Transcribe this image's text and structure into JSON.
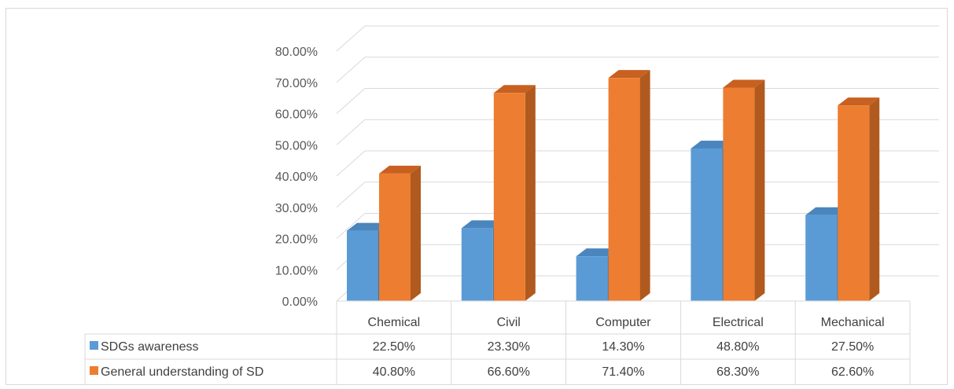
{
  "chart_data": {
    "type": "bar",
    "style": "3d-clustered-column",
    "categories": [
      "Chemical",
      "Civil",
      "Computer",
      "Electrical",
      "Mechanical"
    ],
    "series": [
      {
        "name": "SDGs awareness",
        "values": [
          22.5,
          23.3,
          14.3,
          48.8,
          27.5
        ],
        "labels": [
          "22.50%",
          "23.30%",
          "14.30%",
          "48.80%",
          "27.50%"
        ],
        "color": "#5b9bd5",
        "side_color": "#41719c",
        "top_color": "#4a86bd"
      },
      {
        "name": "General understanding of SD",
        "values": [
          40.8,
          66.6,
          71.4,
          68.3,
          62.6
        ],
        "labels": [
          "40.80%",
          "66.60%",
          "71.40%",
          "68.30%",
          "62.60%"
        ],
        "color": "#ed7d31",
        "side_color": "#b05a1f",
        "top_color": "#c8601f"
      }
    ],
    "ylim": [
      0,
      80
    ],
    "yticks": [
      0,
      10,
      20,
      30,
      40,
      50,
      60,
      70,
      80
    ],
    "ytick_labels": [
      "0.00%",
      "10.00%",
      "20.00%",
      "30.00%",
      "40.00%",
      "50.00%",
      "60.00%",
      "70.00%",
      "80.00%"
    ],
    "grid": true,
    "data_table": true,
    "legend": "data-table-keys"
  }
}
